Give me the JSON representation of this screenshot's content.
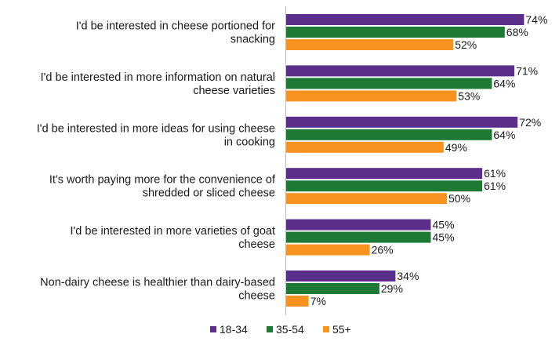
{
  "chart_data": {
    "type": "bar",
    "orientation": "horizontal",
    "title": "",
    "xlabel": "",
    "ylabel": "",
    "xlim": [
      0,
      100
    ],
    "grid": false,
    "legend_position": "bottom-center",
    "value_suffix": "%",
    "categories": [
      [
        "I'd be interested in cheese portioned for",
        "snacking"
      ],
      [
        "I'd be interested in more information on natural",
        "cheese varieties"
      ],
      [
        "I'd be interested in more ideas for using cheese",
        "in cooking"
      ],
      [
        "It's worth paying more for the convenience of",
        "shredded or sliced cheese"
      ],
      [
        "I'd be interested in more varieties of goat",
        "cheese"
      ],
      [
        "Non-dairy cheese is healthier than dairy-based",
        "cheese"
      ]
    ],
    "series": [
      {
        "name": "18-34",
        "color": "#5b2e8c",
        "values": [
          74,
          71,
          72,
          61,
          45,
          34
        ]
      },
      {
        "name": "35-54",
        "color": "#1d7a35",
        "values": [
          68,
          64,
          64,
          61,
          45,
          29
        ]
      },
      {
        "name": "55+",
        "color": "#f7931e",
        "values": [
          52,
          53,
          49,
          50,
          26,
          7
        ]
      }
    ]
  }
}
